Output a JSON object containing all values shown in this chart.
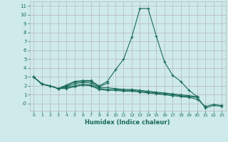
{
  "xlabel": "Humidex (Indice chaleur)",
  "x_values": [
    0,
    1,
    2,
    3,
    4,
    5,
    6,
    7,
    8,
    9,
    10,
    11,
    12,
    13,
    14,
    15,
    16,
    17,
    18,
    19,
    20,
    21,
    22,
    23
  ],
  "lines": [
    [
      3.0,
      2.2,
      2.0,
      1.7,
      2.1,
      2.5,
      2.6,
      2.6,
      2.0,
      2.5,
      3.8,
      5.0,
      7.5,
      10.7,
      10.7,
      7.6,
      4.7,
      3.2,
      2.5,
      1.5,
      0.8,
      -0.5,
      -0.2,
      -0.3
    ],
    [
      3.0,
      2.2,
      2.0,
      1.7,
      2.0,
      2.4,
      2.5,
      2.5,
      1.9,
      2.3,
      null,
      null,
      null,
      null,
      null,
      null,
      null,
      null,
      null,
      null,
      null,
      null,
      null,
      null
    ],
    [
      3.0,
      2.2,
      2.0,
      1.7,
      1.9,
      2.2,
      2.4,
      2.3,
      1.8,
      1.8,
      1.7,
      1.6,
      1.6,
      1.5,
      1.4,
      1.3,
      1.2,
      1.1,
      1.0,
      0.9,
      0.8,
      null,
      null,
      null
    ],
    [
      3.0,
      2.2,
      2.0,
      1.7,
      1.8,
      2.0,
      2.2,
      2.1,
      1.7,
      1.6,
      1.6,
      1.5,
      1.5,
      1.4,
      1.3,
      1.2,
      1.1,
      1.0,
      0.9,
      0.8,
      0.7,
      null,
      null,
      null
    ],
    [
      3.0,
      2.2,
      2.0,
      1.7,
      1.7,
      1.9,
      2.1,
      2.0,
      1.6,
      1.5,
      1.5,
      1.4,
      1.4,
      1.3,
      1.2,
      1.1,
      1.0,
      0.9,
      0.8,
      0.7,
      0.5,
      -0.3,
      -0.1,
      -0.2
    ]
  ],
  "line_color": "#1a6b5a",
  "bg_color": "#ceeaea",
  "grid_color": "#b8b8b8",
  "ylim": [
    -0.8,
    11.5
  ],
  "xlim": [
    -0.5,
    23.5
  ],
  "yticks": [
    0,
    1,
    2,
    3,
    4,
    5,
    6,
    7,
    8,
    9,
    10,
    11
  ],
  "ytick_labels": [
    "-0",
    "1",
    "2",
    "3",
    "4",
    "5",
    "6",
    "7",
    "8",
    "9",
    "10",
    "11"
  ],
  "xticks": [
    0,
    1,
    2,
    3,
    4,
    5,
    6,
    7,
    8,
    9,
    10,
    11,
    12,
    13,
    14,
    15,
    16,
    17,
    18,
    19,
    20,
    21,
    22,
    23
  ]
}
